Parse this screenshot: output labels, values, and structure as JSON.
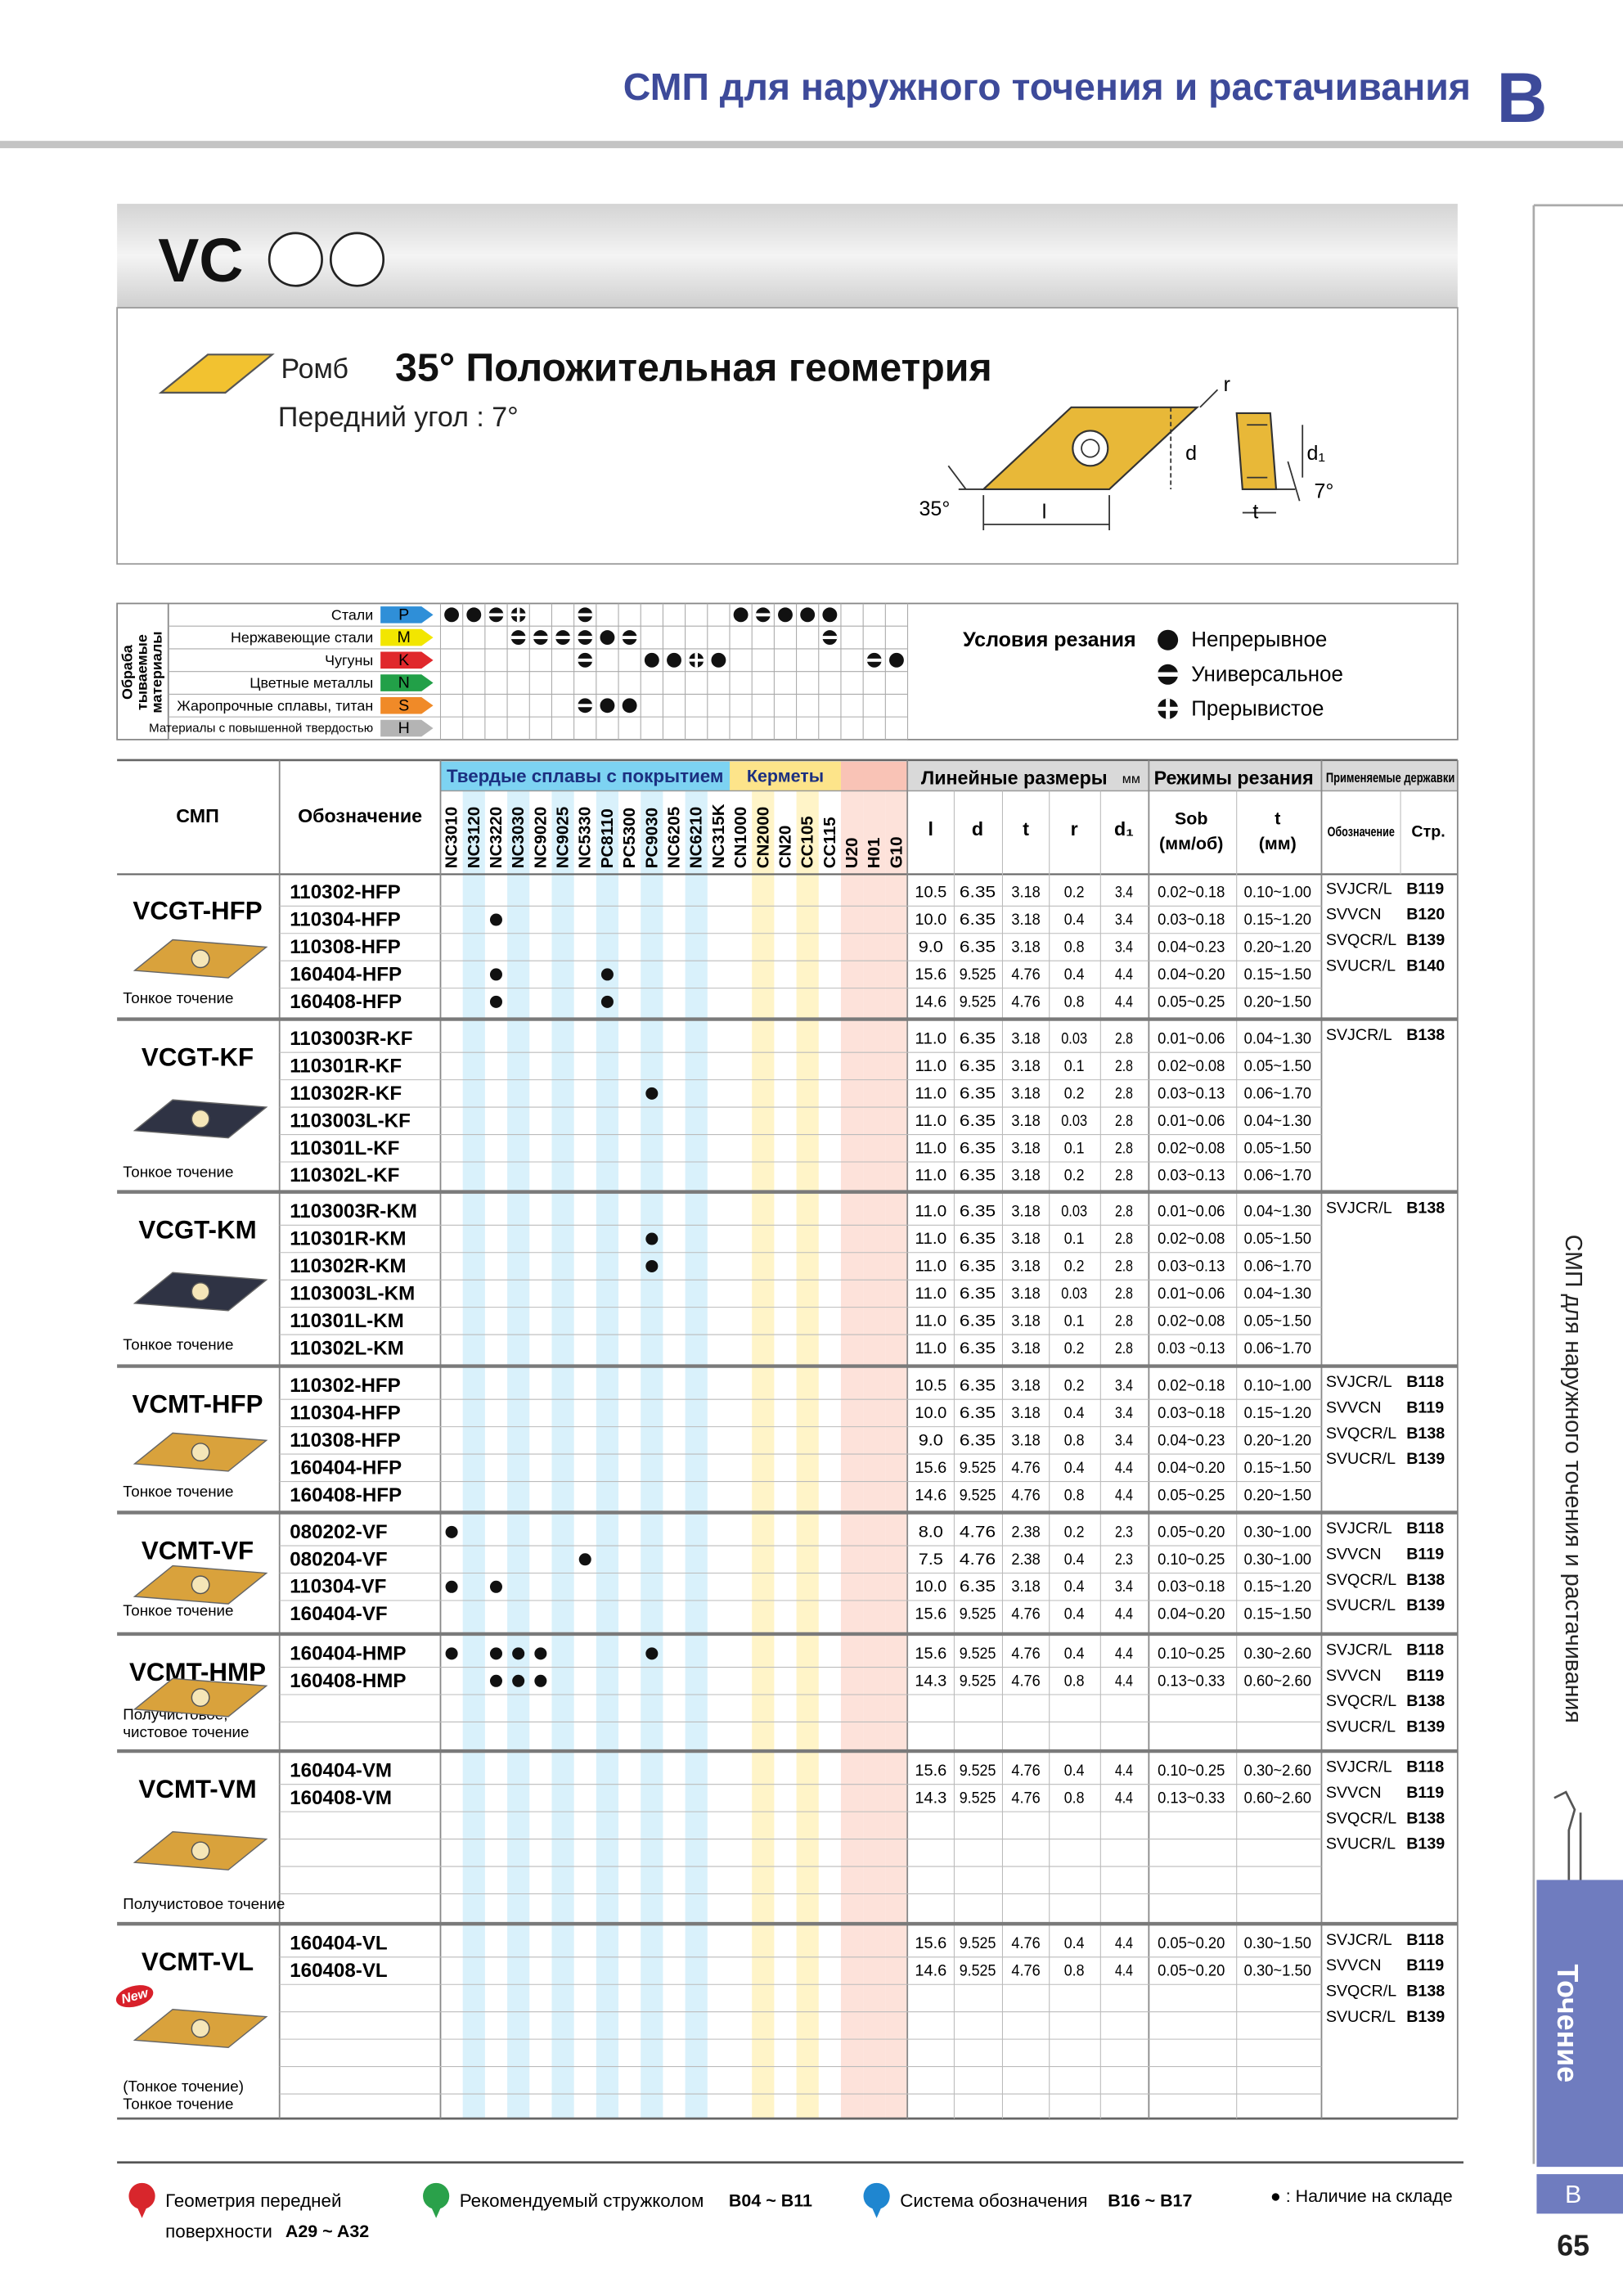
{
  "header": {
    "title": "СМП для наружного точения и растачивания",
    "section": "B"
  },
  "series": "VC",
  "shape": {
    "name": "Ромб",
    "geometry": "35° Положительная геометрия",
    "rake": "Передний угол : 7°"
  },
  "diagram": {
    "r": "r",
    "d": "d",
    "d1": "d₁",
    "angle": "35°",
    "clearance": "7°",
    "l": "l",
    "t": "t"
  },
  "materials": {
    "title": [
      "Обраба",
      "тываемые",
      "материалы"
    ],
    "rows": [
      {
        "name": "Стали",
        "code": "P",
        "color": "#2f8fd8",
        "marks": [
          0,
          0,
          1,
          2,
          null,
          null,
          1,
          null,
          null,
          null,
          null,
          null,
          null,
          0,
          1,
          0,
          0,
          0,
          null,
          null,
          null
        ]
      },
      {
        "name": "Нержавеющие стали",
        "code": "M",
        "color": "#f2e600",
        "marks": [
          null,
          null,
          null,
          1,
          1,
          1,
          1,
          0,
          1,
          null,
          null,
          null,
          null,
          null,
          null,
          null,
          null,
          1,
          null,
          null,
          null
        ]
      },
      {
        "name": "Чугуны",
        "code": "K",
        "color": "#e0282c",
        "marks": [
          null,
          null,
          null,
          null,
          null,
          null,
          1,
          null,
          null,
          0,
          0,
          2,
          0,
          null,
          null,
          null,
          null,
          null,
          null,
          1,
          0
        ]
      },
      {
        "name": "Цветные металлы",
        "code": "N",
        "color": "#22a048",
        "marks": [
          null,
          null,
          null,
          null,
          null,
          null,
          null,
          null,
          null,
          null,
          null,
          null,
          null,
          null,
          null,
          null,
          null,
          null,
          null,
          null,
          null
        ]
      },
      {
        "name": "Жаропрочные сплавы, титан",
        "code": "S",
        "color": "#f08a28",
        "marks": [
          null,
          null,
          null,
          null,
          null,
          null,
          1,
          0,
          0,
          null,
          null,
          null,
          null,
          null,
          null,
          null,
          null,
          null,
          null,
          null,
          null
        ]
      },
      {
        "name": "Материалы с повышенной твердостью",
        "code": "H",
        "color": "#b4b4b4",
        "marks": [
          null,
          null,
          null,
          null,
          null,
          null,
          null,
          null,
          null,
          null,
          null,
          null,
          null,
          null,
          null,
          null,
          null,
          null,
          null,
          null,
          null
        ]
      }
    ]
  },
  "conditions": {
    "title": "Условия резания",
    "items": [
      "Непрерывное",
      "Универсальное",
      "Прерывистое"
    ]
  },
  "table": {
    "header": {
      "insert": "СМП",
      "code": "Обозначение",
      "dims_title": "Линейные размеры",
      "dims_unit": "мм",
      "dims": [
        "l",
        "d",
        "t",
        "r",
        "d₁"
      ],
      "mode_title": "Режимы резания",
      "feed": [
        "Sob",
        "(мм/об)"
      ],
      "depth": [
        "t",
        "(мм)"
      ],
      "holders_title": "Применяемые державки",
      "holder": "Обозначение",
      "page": "Стр."
    },
    "grade_groups": [
      {
        "name": "Твердые сплавы с покрытием",
        "color": "#7dd3f2",
        "stripe": "#d9f1fb",
        "grades": [
          "NC3010",
          "NC3120",
          "NC3220",
          "NC3030",
          "NC9020",
          "NC9025",
          "NC5330",
          "PC8110",
          "PC5300",
          "PC9030",
          "NC6205",
          "NC6210",
          "NC315K"
        ]
      },
      {
        "name": "Керметы",
        "color": "#fde48a",
        "stripe": "#fff4c8",
        "grades": [
          "CN1000",
          "CN2000",
          "CN20",
          "CC105",
          "CC115"
        ]
      },
      {
        "color": "#f9c3b6",
        "stripe": "#fde2da",
        "grades": [
          "U20",
          "H01",
          "G10"
        ]
      }
    ],
    "groups": [
      {
        "model": "VCGT-HFP",
        "use": [
          "Тонкое точение"
        ],
        "insert_color": "#d9a23c",
        "rows": [
          {
            "code": "110302-HFP",
            "dims": [
              "10.5",
              "6.35",
              "3.18",
              "0.2",
              "3.4"
            ],
            "feed": "0.02~0.18",
            "depth": "0.10~1.00",
            "stock": []
          },
          {
            "code": "110304-HFP",
            "dims": [
              "10.0",
              "6.35",
              "3.18",
              "0.4",
              "3.4"
            ],
            "feed": "0.03~0.18",
            "depth": "0.15~1.20",
            "stock": [
              "NC3220"
            ]
          },
          {
            "code": "110308-HFP",
            "dims": [
              "9.0",
              "6.35",
              "3.18",
              "0.8",
              "3.4"
            ],
            "feed": "0.04~0.23",
            "depth": "0.20~1.20",
            "stock": []
          },
          {
            "code": "160404-HFP",
            "dims": [
              "15.6",
              "9.525",
              "4.76",
              "0.4",
              "4.4"
            ],
            "feed": "0.04~0.20",
            "depth": "0.15~1.50",
            "stock": [
              "NC3220",
              "PC8110"
            ]
          },
          {
            "code": "160408-HFP",
            "dims": [
              "14.6",
              "9.525",
              "4.76",
              "0.8",
              "4.4"
            ],
            "feed": "0.05~0.25",
            "depth": "0.20~1.50",
            "stock": [
              "NC3220",
              "PC8110"
            ]
          }
        ],
        "holders": [
          {
            "name": "SVJCR/L",
            "page": "B119"
          },
          {
            "name": "SVVCN",
            "page": "B120"
          },
          {
            "name": "SVQCR/L",
            "page": "B139"
          },
          {
            "name": "SVUCR/L",
            "page": "B140"
          }
        ]
      },
      {
        "model": "VCGT-KF",
        "use": [
          "Тонкое точение"
        ],
        "insert_color": "#2f3344",
        "rows": [
          {
            "code": "1103003R-KF",
            "dims": [
              "11.0",
              "6.35",
              "3.18",
              "0.03",
              "2.8"
            ],
            "feed": "0.01~0.06",
            "depth": "0.04~1.30",
            "stock": []
          },
          {
            "code": "110301R-KF",
            "dims": [
              "11.0",
              "6.35",
              "3.18",
              "0.1",
              "2.8"
            ],
            "feed": "0.02~0.08",
            "depth": "0.05~1.50",
            "stock": []
          },
          {
            "code": "110302R-KF",
            "dims": [
              "11.0",
              "6.35",
              "3.18",
              "0.2",
              "2.8"
            ],
            "feed": "0.03~0.13",
            "depth": "0.06~1.70",
            "stock": [
              "PC9030"
            ]
          },
          {
            "code": "1103003L-KF",
            "dims": [
              "11.0",
              "6.35",
              "3.18",
              "0.03",
              "2.8"
            ],
            "feed": "0.01~0.06",
            "depth": "0.04~1.30",
            "stock": []
          },
          {
            "code": "110301L-KF",
            "dims": [
              "11.0",
              "6.35",
              "3.18",
              "0.1",
              "2.8"
            ],
            "feed": "0.02~0.08",
            "depth": "0.05~1.50",
            "stock": []
          },
          {
            "code": "110302L-KF",
            "dims": [
              "11.0",
              "6.35",
              "3.18",
              "0.2",
              "2.8"
            ],
            "feed": "0.03~0.13",
            "depth": "0.06~1.70",
            "stock": []
          }
        ],
        "holders": [
          {
            "name": "SVJCR/L",
            "page": "B138"
          }
        ]
      },
      {
        "model": "VCGT-KM",
        "use": [
          "Тонкое точение"
        ],
        "insert_color": "#2f3344",
        "rows": [
          {
            "code": "1103003R-KM",
            "dims": [
              "11.0",
              "6.35",
              "3.18",
              "0.03",
              "2.8"
            ],
            "feed": "0.01~0.06",
            "depth": "0.04~1.30",
            "stock": []
          },
          {
            "code": "110301R-KM",
            "dims": [
              "11.0",
              "6.35",
              "3.18",
              "0.1",
              "2.8"
            ],
            "feed": "0.02~0.08",
            "depth": "0.05~1.50",
            "stock": [
              "PC9030"
            ]
          },
          {
            "code": "110302R-KM",
            "dims": [
              "11.0",
              "6.35",
              "3.18",
              "0.2",
              "2.8"
            ],
            "feed": "0.03~0.13",
            "depth": "0.06~1.70",
            "stock": [
              "PC9030"
            ]
          },
          {
            "code": "1103003L-KM",
            "dims": [
              "11.0",
              "6.35",
              "3.18",
              "0.03",
              "2.8"
            ],
            "feed": "0.01~0.06",
            "depth": "0.04~1.30",
            "stock": []
          },
          {
            "code": "110301L-KM",
            "dims": [
              "11.0",
              "6.35",
              "3.18",
              "0.1",
              "2.8"
            ],
            "feed": "0.02~0.08",
            "depth": "0.05~1.50",
            "stock": []
          },
          {
            "code": "110302L-KM",
            "dims": [
              "11.0",
              "6.35",
              "3.18",
              "0.2",
              "2.8"
            ],
            "feed": "0.03 ~0.13",
            "depth": "0.06~1.70",
            "stock": []
          }
        ],
        "holders": [
          {
            "name": "SVJCR/L",
            "page": "B138"
          }
        ]
      },
      {
        "model": "VCMT-HFP",
        "use": [
          "Тонкое точение"
        ],
        "insert_color": "#d9a23c",
        "rows": [
          {
            "code": "110302-HFP",
            "dims": [
              "10.5",
              "6.35",
              "3.18",
              "0.2",
              "3.4"
            ],
            "feed": "0.02~0.18",
            "depth": "0.10~1.00",
            "stock": []
          },
          {
            "code": "110304-HFP",
            "dims": [
              "10.0",
              "6.35",
              "3.18",
              "0.4",
              "3.4"
            ],
            "feed": "0.03~0.18",
            "depth": "0.15~1.20",
            "stock": []
          },
          {
            "code": "110308-HFP",
            "dims": [
              "9.0",
              "6.35",
              "3.18",
              "0.8",
              "3.4"
            ],
            "feed": "0.04~0.23",
            "depth": "0.20~1.20",
            "stock": []
          },
          {
            "code": "160404-HFP",
            "dims": [
              "15.6",
              "9.525",
              "4.76",
              "0.4",
              "4.4"
            ],
            "feed": "0.04~0.20",
            "depth": "0.15~1.50",
            "stock": []
          },
          {
            "code": "160408-HFP",
            "dims": [
              "14.6",
              "9.525",
              "4.76",
              "0.8",
              "4.4"
            ],
            "feed": "0.05~0.25",
            "depth": "0.20~1.50",
            "stock": []
          }
        ],
        "holders": [
          {
            "name": "SVJCR/L",
            "page": "B118"
          },
          {
            "name": "SVVCN",
            "page": "B119"
          },
          {
            "name": "SVQCR/L",
            "page": "B138"
          },
          {
            "name": "SVUCR/L",
            "page": "B139"
          }
        ]
      },
      {
        "model": "VCMT-VF",
        "use": [
          "Тонкое точение"
        ],
        "insert_color": "#d9a23c",
        "rows": [
          {
            "code": "080202-VF",
            "dims": [
              "8.0",
              "4.76",
              "2.38",
              "0.2",
              "2.3"
            ],
            "feed": "0.05~0.20",
            "depth": "0.30~1.00",
            "stock": [
              "NC3010"
            ]
          },
          {
            "code": "080204-VF",
            "dims": [
              "7.5",
              "4.76",
              "2.38",
              "0.4",
              "2.3"
            ],
            "feed": "0.10~0.25",
            "depth": "0.30~1.00",
            "stock": [
              "NC5330"
            ]
          },
          {
            "code": "110304-VF",
            "dims": [
              "10.0",
              "6.35",
              "3.18",
              "0.4",
              "3.4"
            ],
            "feed": "0.03~0.18",
            "depth": "0.15~1.20",
            "stock": [
              "NC3010",
              "NC3220"
            ]
          },
          {
            "code": "160404-VF",
            "dims": [
              "15.6",
              "9.525",
              "4.76",
              "0.4",
              "4.4"
            ],
            "feed": "0.04~0.20",
            "depth": "0.15~1.50",
            "stock": []
          }
        ],
        "holders": [
          {
            "name": "SVJCR/L",
            "page": "B118"
          },
          {
            "name": "SVVCN",
            "page": "B119"
          },
          {
            "name": "SVQCR/L",
            "page": "B138"
          },
          {
            "name": "SVUCR/L",
            "page": "B139"
          }
        ]
      },
      {
        "model": "VCMT-HMP",
        "use": [
          "Получистовое,",
          "чистовое точение"
        ],
        "insert_color": "#d9a23c",
        "rows": [
          {
            "code": "160404-HMP",
            "dims": [
              "15.6",
              "9.525",
              "4.76",
              "0.4",
              "4.4"
            ],
            "feed": "0.10~0.25",
            "depth": "0.30~2.60",
            "stock": [
              "NC3010",
              "NC3220",
              "NC3030",
              "NC9020",
              "PC9030"
            ]
          },
          {
            "code": "160408-HMP",
            "dims": [
              "14.3",
              "9.525",
              "4.76",
              "0.8",
              "4.4"
            ],
            "feed": "0.13~0.33",
            "depth": "0.60~2.60",
            "stock": [
              "NC3220",
              "NC3030",
              "NC9020"
            ]
          }
        ],
        "holders": [
          {
            "name": "SVJCR/L",
            "page": "B118"
          },
          {
            "name": "SVVCN",
            "page": "B119"
          },
          {
            "name": "SVQCR/L",
            "page": "B138"
          },
          {
            "name": "SVUCR/L",
            "page": "B139"
          }
        ]
      },
      {
        "model": "VCMT-VM",
        "use": [
          "Получистовое точение"
        ],
        "insert_color": "#d9a23c",
        "rows": [
          {
            "code": "160404-VM",
            "dims": [
              "15.6",
              "9.525",
              "4.76",
              "0.4",
              "4.4"
            ],
            "feed": "0.10~0.25",
            "depth": "0.30~2.60",
            "stock": []
          },
          {
            "code": "160408-VM",
            "dims": [
              "14.3",
              "9.525",
              "4.76",
              "0.8",
              "4.4"
            ],
            "feed": "0.13~0.33",
            "depth": "0.60~2.60",
            "stock": []
          }
        ],
        "holders": [
          {
            "name": "SVJCR/L",
            "page": "B118"
          },
          {
            "name": "SVVCN",
            "page": "B119"
          },
          {
            "name": "SVQCR/L",
            "page": "B138"
          },
          {
            "name": "SVUCR/L",
            "page": "B139"
          }
        ]
      },
      {
        "model": "VCMT-VL",
        "badge": "New",
        "use": [
          "(Тонкое точение)",
          "Тонкое точение"
        ],
        "insert_color": "#d9a23c",
        "rows": [
          {
            "code": "160404-VL",
            "dims": [
              "15.6",
              "9.525",
              "4.76",
              "0.4",
              "4.4"
            ],
            "feed": "0.05~0.20",
            "depth": "0.30~1.50",
            "stock": []
          },
          {
            "code": "160408-VL",
            "dims": [
              "14.6",
              "9.525",
              "4.76",
              "0.8",
              "4.4"
            ],
            "feed": "0.05~0.20",
            "depth": "0.30~1.50",
            "stock": []
          }
        ],
        "holders": [
          {
            "name": "SVJCR/L",
            "page": "B118"
          },
          {
            "name": "SVVCN",
            "page": "B119"
          },
          {
            "name": "SVQCR/L",
            "page": "B138"
          },
          {
            "name": "SVUCR/L",
            "page": "B139"
          }
        ]
      }
    ]
  },
  "side": {
    "title": "СМП для наружного точения и растачивания",
    "tab": "Точение",
    "section": "B",
    "page": "65"
  },
  "footer": {
    "items": [
      {
        "text": [
          "Геометрия передней",
          "поверхности"
        ],
        "ref": "A29 ~ A32",
        "color": "#d8262c"
      },
      {
        "text": [
          "Рекомендуемый стружколом"
        ],
        "ref": "B04 ~ B11",
        "color": "#2aa14a"
      },
      {
        "text": [
          "Система обозначения"
        ],
        "ref": "B16 ~ B17",
        "color": "#1f86d0"
      }
    ],
    "stock_note": "● : Наличие на складе"
  }
}
